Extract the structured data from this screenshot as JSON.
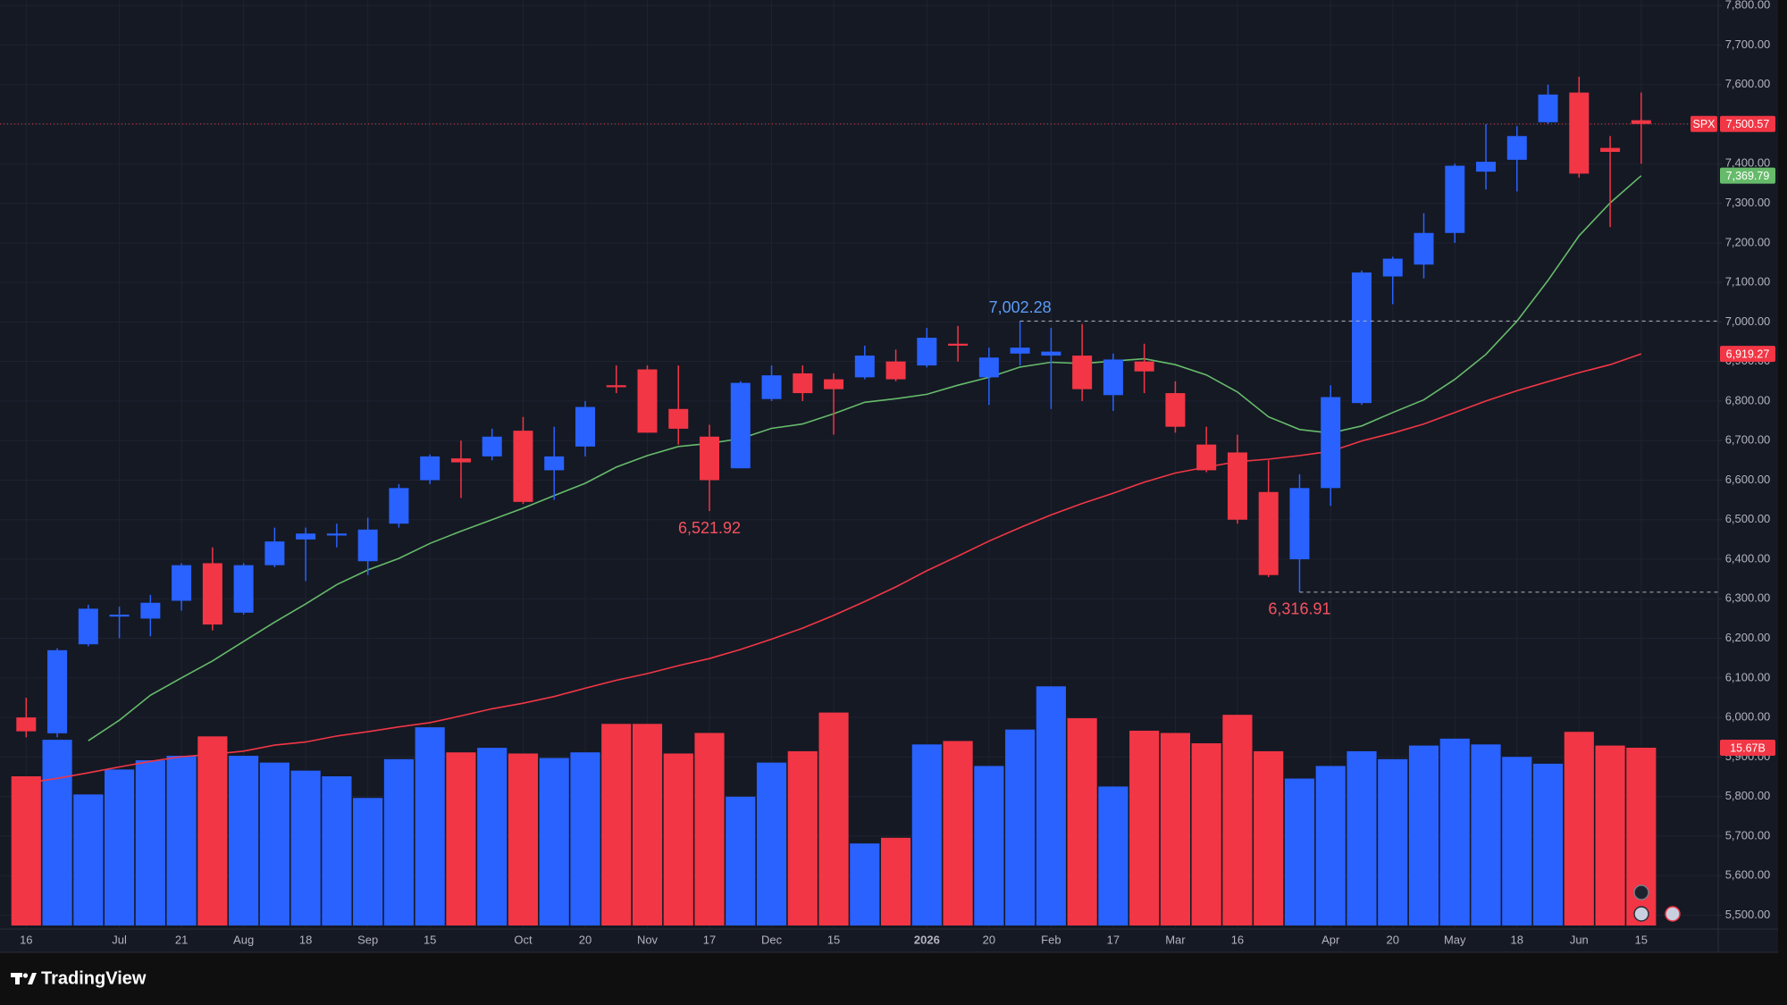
{
  "chart_data": {
    "type": "candlestick",
    "categories": [
      "16",
      null,
      null,
      "Jul",
      null,
      "21",
      null,
      "Aug",
      null,
      "18",
      null,
      "Sep",
      null,
      "15",
      null,
      null,
      "Oct",
      null,
      "20",
      null,
      "Nov",
      null,
      "17",
      null,
      "Dec",
      null,
      "15",
      null,
      null,
      "2026",
      null,
      "20",
      null,
      "Feb",
      null,
      "17",
      null,
      "Mar",
      null,
      "16",
      null,
      null,
      "Apr",
      null,
      "20",
      null,
      "May",
      null,
      "18",
      null,
      "Jun",
      null,
      "15"
    ],
    "series": [
      {
        "name": "SPX",
        "up_color": "#2962ff",
        "down_color": "#f23645",
        "open": [
          6000,
          5960,
          6185,
          6255,
          6250,
          6295,
          6390,
          6265,
          6385,
          6450,
          6460,
          6395,
          6490,
          6600,
          6655,
          6660,
          6725,
          6625,
          6685,
          6840,
          6880,
          6780,
          6710,
          6630,
          6805,
          6870,
          6855,
          6860,
          6900,
          6890,
          6945,
          6860,
          6920,
          6915,
          6915,
          6815,
          6900,
          6820,
          6690,
          6670,
          6570,
          6400,
          6580,
          6795,
          7115,
          7145,
          7225,
          7380,
          7410,
          7505,
          7580,
          7440,
          7510
        ],
        "high": [
          6050,
          6175,
          6285,
          6280,
          6310,
          6390,
          6430,
          6390,
          6480,
          6480,
          6490,
          6505,
          6590,
          6665,
          6700,
          6730,
          6760,
          6735,
          6800,
          6890,
          6890,
          6890,
          6740,
          6850,
          6890,
          6890,
          6870,
          6940,
          6930,
          6985,
          6990,
          6935,
          7002.28,
          6985,
          6995,
          6920,
          6945,
          6850,
          6735,
          6715,
          6650,
          6615,
          6840,
          7130,
          7165,
          7275,
          7400,
          7500,
          7495,
          7600,
          7620,
          7470,
          7580
        ],
        "low": [
          5950,
          5950,
          6180,
          6200,
          6205,
          6270,
          6220,
          6260,
          6380,
          6345,
          6430,
          6360,
          6480,
          6590,
          6555,
          6650,
          6540,
          6550,
          6660,
          6820,
          6720,
          6690,
          6521.92,
          6630,
          6800,
          6800,
          6715,
          6855,
          6850,
          6885,
          6900,
          6790,
          6890,
          6780,
          6800,
          6775,
          6820,
          6720,
          6620,
          6490,
          6355,
          6316.91,
          6535,
          6790,
          7045,
          7110,
          7200,
          7335,
          7330,
          7500,
          7365,
          7240,
          7400
        ],
        "close": [
          5965,
          6170,
          6275,
          6260,
          6290,
          6385,
          6235,
          6385,
          6445,
          6465,
          6465,
          6475,
          6580,
          6660,
          6645,
          6710,
          6545,
          6660,
          6785,
          6835,
          6720,
          6730,
          6600,
          6846,
          6865,
          6820,
          6830,
          6915,
          6855,
          6960,
          6940,
          6910,
          6935,
          6925,
          6830,
          6905,
          6875,
          6735,
          6625,
          6500,
          6360,
          6580,
          6810,
          7125,
          7160,
          7225,
          7395,
          7405,
          7470,
          7575,
          7375,
          7430,
          7500.57
        ],
        "last_label": "7,500.57"
      }
    ],
    "moving_averages": [
      {
        "color": "#66bb6a",
        "values": [
          null,
          null,
          5941,
          5993,
          6056,
          6100,
          6143,
          6192,
          6241,
          6287,
          6336,
          6373,
          6402,
          6440,
          6471,
          6500,
          6529,
          6561,
          6592,
          6633,
          6662,
          6685,
          6693,
          6705,
          6731,
          6742,
          6768,
          6797,
          6806,
          6817,
          6840,
          6860,
          6886,
          6898,
          6895,
          6901,
          6907,
          6892,
          6866,
          6823,
          6760,
          6728,
          6719,
          6737,
          6771,
          6803,
          6855,
          6918,
          7002,
          7105,
          7218,
          7301,
          7369.79
        ],
        "last_label": "7,369.79"
      },
      {
        "color": "#f23645",
        "values": [
          5834,
          5846,
          5860,
          5875,
          5889,
          5901,
          5907,
          5915,
          5930,
          5938,
          5953,
          5964,
          5976,
          5987,
          6004,
          6022,
          6036,
          6053,
          6074,
          6094,
          6111,
          6131,
          6149,
          6172,
          6198,
          6226,
          6258,
          6293,
          6330,
          6371,
          6408,
          6446,
          6480,
          6512,
          6541,
          6567,
          6595,
          6618,
          6633,
          6647,
          6653,
          6662,
          6673,
          6699,
          6719,
          6742,
          6771,
          6800,
          6826,
          6849,
          6872,
          6892,
          6919.27
        ],
        "last_label": "6,919.27"
      }
    ],
    "volume": {
      "values": [
        13.15,
        16.37,
        11.55,
        13.75,
        14.56,
        14.96,
        16.67,
        14.96,
        14.36,
        13.65,
        13.15,
        11.24,
        14.66,
        17.47,
        15.26,
        15.66,
        15.16,
        14.76,
        15.26,
        17.77,
        17.77,
        15.16,
        16.97,
        11.35,
        14.36,
        15.36,
        18.77,
        7.23,
        7.73,
        15.96,
        16.26,
        14.06,
        17.27,
        21.08,
        18.27,
        12.25,
        17.17,
        16.97,
        16.06,
        18.57,
        15.36,
        12.95,
        14.06,
        15.36,
        14.66,
        15.86,
        16.47,
        15.96,
        14.86,
        14.26,
        17.07,
        15.86,
        15.67
      ],
      "last_label": "15.67B"
    },
    "annotations": [
      {
        "label": "7,002.28",
        "value": 7002.28,
        "kind": "high",
        "color": "#5b9cf6",
        "dashed_line": true
      },
      {
        "label": "6,521.92",
        "value": 6521.92,
        "kind": "low",
        "color": "#f7525f",
        "dashed_line": false
      },
      {
        "label": "6,316.91",
        "value": 6316.91,
        "kind": "low",
        "color": "#f7525f",
        "dashed_line": true
      }
    ],
    "ylim": [
      5474,
      7814
    ],
    "yticks": [
      {
        "value": 5500,
        "label": "5,500.00"
      },
      {
        "value": 5600,
        "label": "5,600.00"
      },
      {
        "value": 5700,
        "label": "5,700.00"
      },
      {
        "value": 5800,
        "label": "5,800.00"
      },
      {
        "value": 5900,
        "label": "5,900.00"
      },
      {
        "value": 6000,
        "label": "6,000.00"
      },
      {
        "value": 6100,
        "label": "6,100.00"
      },
      {
        "value": 6200,
        "label": "6,200.00"
      },
      {
        "value": 6300,
        "label": "6,300.00"
      },
      {
        "value": 6400,
        "label": "6,400.00"
      },
      {
        "value": 6500,
        "label": "6,500.00"
      },
      {
        "value": 6600,
        "label": "6,600.00"
      },
      {
        "value": 6700,
        "label": "6,700.00"
      },
      {
        "value": 6800,
        "label": "6,800.00"
      },
      {
        "value": 6900,
        "label": "6,900.00"
      },
      {
        "value": 7000,
        "label": "7,000.00"
      },
      {
        "value": 7100,
        "label": "7,100.00"
      },
      {
        "value": 7200,
        "label": "7,200.00"
      },
      {
        "value": 7300,
        "label": "7,300.00"
      },
      {
        "value": 7400,
        "label": "7,400.00"
      },
      {
        "value": 7500,
        "label": "7,500.00"
      },
      {
        "value": 7600,
        "label": "7,600.00"
      },
      {
        "value": 7700,
        "label": "7,700.00"
      },
      {
        "value": 7800,
        "label": "7,800.00"
      }
    ],
    "grid": true,
    "brand": "TradingView"
  }
}
